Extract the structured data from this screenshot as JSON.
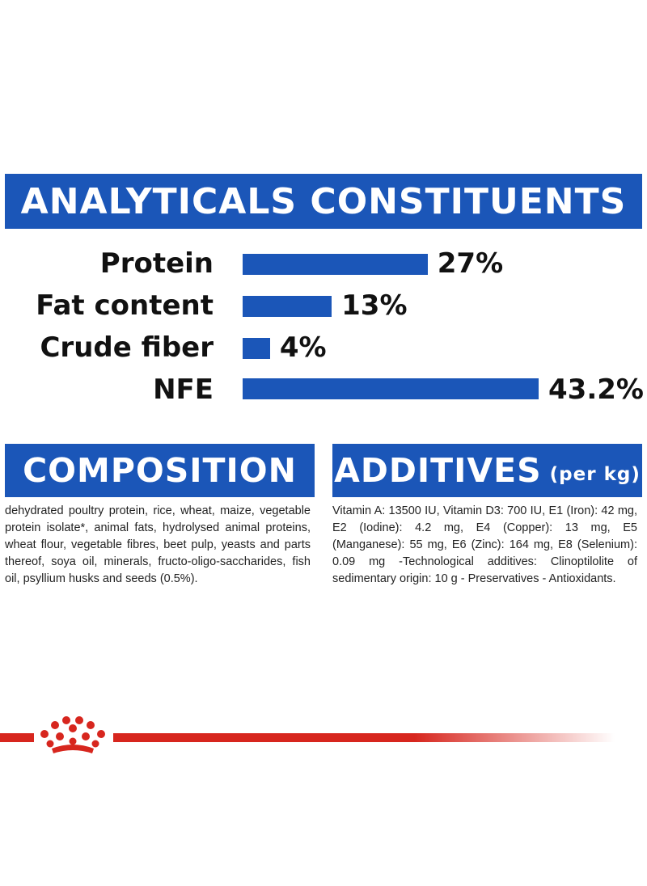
{
  "analytics": {
    "title": "ANALYTICALS CONSTITUENTS",
    "rows": [
      {
        "label": "Protein",
        "value_text": "27%",
        "value": 27
      },
      {
        "label": "Fat content",
        "value_text": "13%",
        "value": 13
      },
      {
        "label": "Crude fiber",
        "value_text": "4%",
        "value": 4
      },
      {
        "label": "NFE",
        "value_text": "43.2%",
        "value": 43.2
      }
    ]
  },
  "composition": {
    "title": "COMPOSITION",
    "text": "dehydrated poultry protein, rice, wheat, maize, vegetable protein isolate*, animal fats, hydrolysed animal proteins, wheat flour, vegetable fibres, beet pulp, yeasts and parts thereof, soya oil, minerals, fructo-oligo-saccharides, fish oil, psyllium husks and seeds (0.5%)."
  },
  "additives": {
    "title": "ADDITIVES",
    "unit": "(per kg)",
    "text": "Vitamin A: 13500 IU, Vitamin D3: 700 IU, E1 (Iron): 42 mg, E2 (Iodine): 4.2 mg, E4 (Copper): 13 mg, E5 (Manganese): 55 mg, E6 (Zinc): 164 mg, E8 (Selenium): 0.09 mg -Technological additives: Clinoptilolite of sedimentary origin: 10 g - Preservatives - Antioxidants."
  },
  "colors": {
    "brand_blue": "#1b56b8",
    "brand_red": "#d7261e"
  },
  "logo": {
    "icon": "crown-icon"
  }
}
